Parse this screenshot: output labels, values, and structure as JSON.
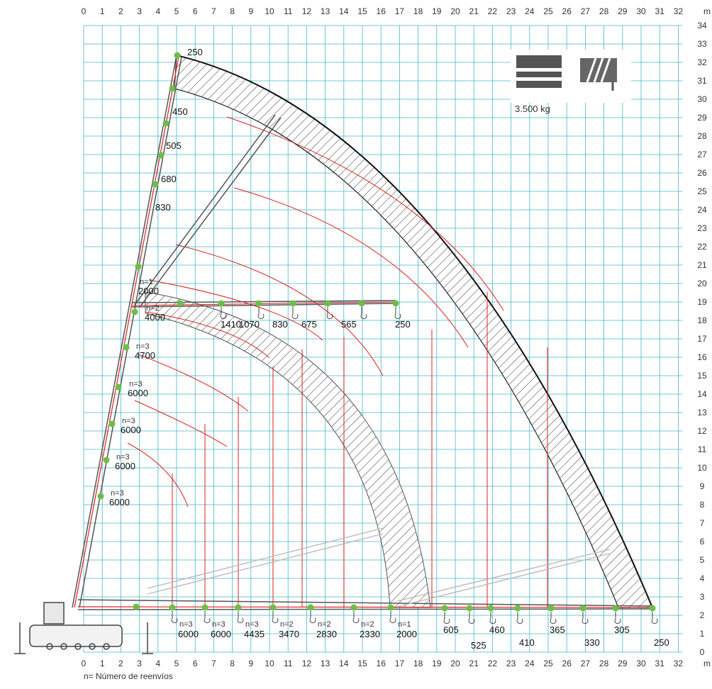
{
  "axes": {
    "x_unit": "m",
    "y_unit": "m",
    "x_ticks": [
      "0",
      "1",
      "2",
      "3",
      "4",
      "5",
      "6",
      "7",
      "8",
      "9",
      "10",
      "11",
      "12",
      "13",
      "14",
      "15",
      "16",
      "17",
      "18",
      "19",
      "20",
      "21",
      "22",
      "23",
      "24",
      "25",
      "26",
      "27",
      "28",
      "29",
      "30",
      "31",
      "32"
    ],
    "y_ticks": [
      "0",
      "1",
      "2",
      "3",
      "4",
      "5",
      "6",
      "7",
      "8",
      "9",
      "10",
      "11",
      "12",
      "13",
      "14",
      "15",
      "16",
      "17",
      "18",
      "19",
      "20",
      "21",
      "22",
      "23",
      "24",
      "25",
      "26",
      "27",
      "28",
      "29",
      "30",
      "31",
      "32",
      "33",
      "34"
    ]
  },
  "badge": {
    "weight_label": "3.500 kg",
    "icons": [
      "counterweight-icon",
      "winch-icon"
    ]
  },
  "legend_note": "n= Número de reenvíos",
  "colors": {
    "grid": "#48b8c8",
    "boom": "#e02020",
    "point": "#6cbf45",
    "hatch": "#555555",
    "outline": "#222222"
  },
  "vertical_boom_capacities": [
    {
      "label": "250",
      "n": ""
    },
    {
      "label": "450",
      "n": ""
    },
    {
      "label": "505",
      "n": ""
    },
    {
      "label": "680",
      "n": ""
    },
    {
      "label": "830",
      "n": ""
    },
    {
      "label": "2000",
      "n": "n=1"
    },
    {
      "label": "4000",
      "n": "n=2"
    },
    {
      "label": "4700",
      "n": "n=3"
    },
    {
      "label": "6000",
      "n": "n=3"
    },
    {
      "label": "6000",
      "n": "n=3"
    },
    {
      "label": "6000",
      "n": "n=3"
    },
    {
      "label": "6000",
      "n": "n=3"
    }
  ],
  "jib_capacities": [
    {
      "label": "1410"
    },
    {
      "label": "1070"
    },
    {
      "label": "830"
    },
    {
      "label": "675"
    },
    {
      "label": "565"
    },
    {
      "label": "250"
    }
  ],
  "ground_capacities_low": [
    {
      "label": "6000",
      "n": "n=3"
    },
    {
      "label": "6000",
      "n": "n=3"
    },
    {
      "label": "4435",
      "n": "n=3"
    },
    {
      "label": "3470",
      "n": "n=2"
    },
    {
      "label": "2830",
      "n": "n=2"
    },
    {
      "label": "2330",
      "n": "n=2"
    },
    {
      "label": "2000",
      "n": "n=1"
    }
  ],
  "ground_capacities_high": [
    {
      "label": "605"
    },
    {
      "label": "525"
    },
    {
      "label": "460"
    },
    {
      "label": "410"
    },
    {
      "label": "365"
    },
    {
      "label": "330"
    },
    {
      "label": "305"
    },
    {
      "label": "250"
    }
  ]
}
